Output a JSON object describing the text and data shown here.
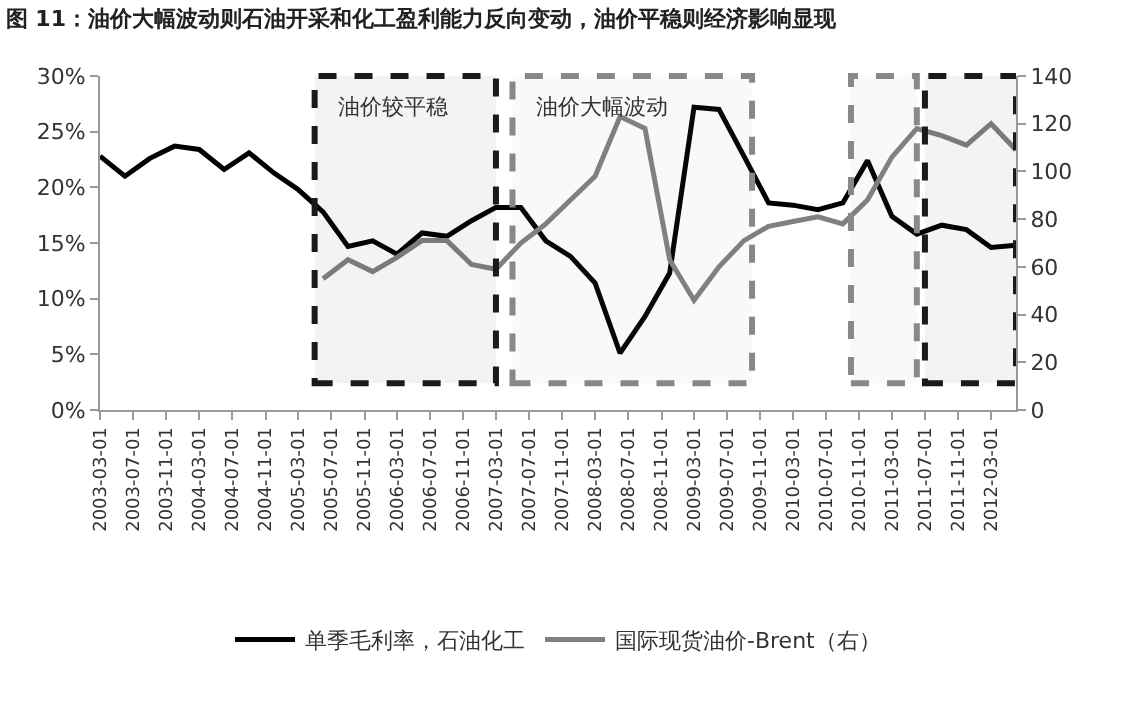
{
  "chart_data": {
    "type": "line",
    "title": "图 11：油价大幅波动则石油开采和化工盈利能力反向变动，油价平稳则经济影响显现",
    "x": [
      "2003-03-01",
      "2003-06-01",
      "2003-09-01",
      "2003-12-01",
      "2004-03-01",
      "2004-06-01",
      "2004-09-01",
      "2004-12-01",
      "2005-03-01",
      "2005-06-01",
      "2005-09-01",
      "2005-12-01",
      "2006-03-01",
      "2006-06-01",
      "2006-09-01",
      "2006-12-01",
      "2007-03-01",
      "2007-06-01",
      "2007-09-01",
      "2007-12-01",
      "2008-03-01",
      "2008-06-01",
      "2008-09-01",
      "2008-12-01",
      "2009-03-01",
      "2009-06-01",
      "2009-09-01",
      "2009-12-01",
      "2010-03-01",
      "2010-06-01",
      "2010-09-01",
      "2010-12-01",
      "2011-03-01",
      "2011-06-01",
      "2011-09-01",
      "2011-12-01",
      "2012-03-01",
      "2012-06-01"
    ],
    "series": [
      {
        "name": "单季毛利率，石油化工",
        "color": "#000000",
        "values": [
          22.8,
          21.0,
          22.6,
          23.7,
          23.4,
          21.6,
          23.1,
          21.3,
          19.8,
          17.8,
          14.7,
          15.2,
          14.0,
          15.9,
          15.6,
          17.0,
          18.2,
          18.2,
          15.2,
          13.8,
          11.4,
          5.1,
          8.4,
          12.3,
          27.2,
          27.0,
          22.8,
          18.6,
          18.4,
          18.0,
          18.6,
          22.4,
          17.4,
          15.8,
          16.6,
          16.2,
          14.6,
          14.8
        ]
      },
      {
        "name": "国际现货油价-Brent（右）",
        "color": "#808080",
        "axis": "y2",
        "values": [
          null,
          null,
          null,
          null,
          null,
          null,
          null,
          null,
          null,
          55,
          63,
          58,
          64,
          71,
          71,
          61,
          59,
          70,
          78,
          88,
          98,
          123,
          118,
          63,
          46,
          60,
          71,
          77,
          79,
          81,
          78,
          88,
          106,
          118,
          115,
          111,
          120,
          109
        ]
      }
    ],
    "xlim": [
      "2003-03-01",
      "2012-06-01"
    ],
    "xticks": [
      "2003-03-01",
      "2003-07-01",
      "2003-11-01",
      "2004-03-01",
      "2004-07-01",
      "2004-11-01",
      "2005-03-01",
      "2005-07-01",
      "2005-11-01",
      "2006-03-01",
      "2006-07-01",
      "2006-11-01",
      "2007-03-01",
      "2007-07-01",
      "2007-11-01",
      "2008-03-01",
      "2008-07-01",
      "2008-11-01",
      "2009-03-01",
      "2009-07-01",
      "2009-11-01",
      "2010-03-01",
      "2010-07-01",
      "2010-11-01",
      "2011-03-01",
      "2011-07-01",
      "2011-11-01",
      "2012-03-01"
    ],
    "ylim": [
      0,
      30
    ],
    "yticks": [
      {
        "value": 0,
        "label": "0%"
      },
      {
        "value": 5,
        "label": "5%"
      },
      {
        "value": 10,
        "label": "10%"
      },
      {
        "value": 15,
        "label": "15%"
      },
      {
        "value": 20,
        "label": "20%"
      },
      {
        "value": 25,
        "label": "25%"
      },
      {
        "value": 30,
        "label": "30%"
      }
    ],
    "y2lim": [
      0,
      140
    ],
    "y2ticks": [
      0,
      20,
      40,
      60,
      80,
      100,
      120,
      140
    ],
    "bands": [
      {
        "axis": "x",
        "from": "2005-05-01",
        "to": "2007-03-01",
        "label": "油价较平稳",
        "color": "#1a1a1a"
      },
      {
        "axis": "x",
        "from": "2007-05-01",
        "to": "2009-10-01",
        "label": "油价大幅波动",
        "color": "#888888"
      },
      {
        "axis": "x",
        "from": "2010-10-01",
        "to": "2011-06-01",
        "color": "#888888"
      },
      {
        "axis": "x",
        "from": "2011-07-01",
        "to": "2012-06-01",
        "color": "#1a1a1a"
      }
    ],
    "legend": "bottom",
    "marker": "none",
    "line_style": "solid"
  }
}
